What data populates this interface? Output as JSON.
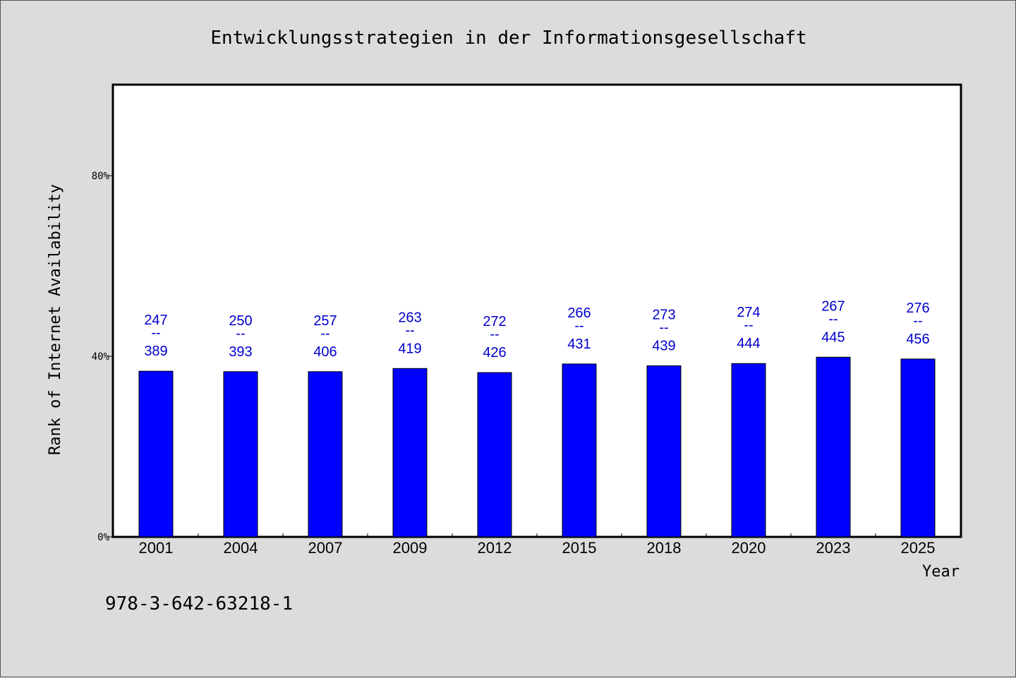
{
  "chart_data": {
    "type": "bar",
    "title": "Entwicklungsstrategien in der Informationsgesellschaft",
    "xlabel": "Year",
    "ylabel": "Rank of Internet Availability",
    "categories": [
      "2001",
      "2004",
      "2007",
      "2009",
      "2012",
      "2015",
      "2018",
      "2020",
      "2023",
      "2025"
    ],
    "values": [
      36.7,
      36.6,
      36.6,
      37.3,
      36.4,
      38.3,
      37.9,
      38.4,
      39.8,
      39.4
    ],
    "value_unit": "%",
    "ylim": [
      0,
      100
    ],
    "yticks": [
      0,
      40,
      80
    ],
    "ytick_labels": [
      "0%",
      "40%",
      "80%"
    ],
    "bar_labels": [
      {
        "top": "247",
        "separator": "--",
        "bottom": "389"
      },
      {
        "top": "250",
        "separator": "--",
        "bottom": "393"
      },
      {
        "top": "257",
        "separator": "--",
        "bottom": "406"
      },
      {
        "top": "263",
        "separator": "--",
        "bottom": "419"
      },
      {
        "top": "272",
        "separator": "--",
        "bottom": "426"
      },
      {
        "top": "266",
        "separator": "--",
        "bottom": "431"
      },
      {
        "top": "273",
        "separator": "--",
        "bottom": "439"
      },
      {
        "top": "274",
        "separator": "--",
        "bottom": "444"
      },
      {
        "top": "267",
        "separator": "--",
        "bottom": "445"
      },
      {
        "top": "276",
        "separator": "--",
        "bottom": "456"
      }
    ],
    "bar_color": "#0000ff",
    "label_color": "#0000cc",
    "grid": false,
    "legend": "none"
  },
  "footer": {
    "isbn": "978-3-642-63218-1"
  }
}
